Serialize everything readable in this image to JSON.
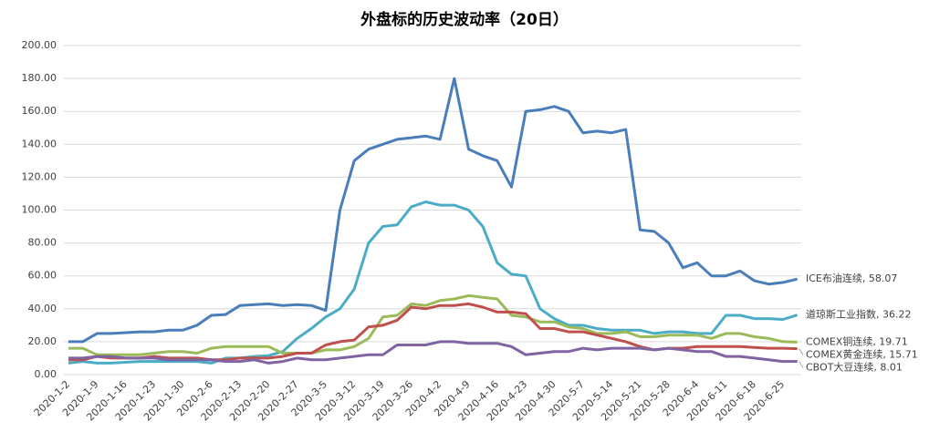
{
  "chart_data": {
    "type": "line",
    "title": "外盘标的历史波动率（20日）",
    "categories": [
      "2020-1-2",
      null,
      "2020-1-9",
      null,
      "2020-1-16",
      null,
      "2020-1-23",
      null,
      "2020-1-30",
      null,
      "2020-2-6",
      null,
      "2020-2-13",
      null,
      "2020-2-20",
      null,
      "2020-2-27",
      null,
      "2020-3-5",
      null,
      "2020-3-12",
      null,
      "2020-3-19",
      null,
      "2020-3-26",
      null,
      "2020-4-2",
      null,
      "2020-4-9",
      null,
      "2020-4-16",
      null,
      "2020-4-23",
      null,
      "2020-4-30",
      null,
      "2020-5-7",
      null,
      "2020-5-14",
      null,
      "2020-5-21",
      null,
      "2020-5-28",
      null,
      "2020-6-4",
      null,
      "2020-6-11",
      null,
      "2020-6-18",
      null,
      "2020-6-25",
      null
    ],
    "ylim": [
      0,
      200
    ],
    "yticks": [
      {
        "value": 0,
        "label": "0.00"
      },
      {
        "value": 20,
        "label": "20.00"
      },
      {
        "value": 40,
        "label": "40.00"
      },
      {
        "value": 60,
        "label": "60.00"
      },
      {
        "value": 80,
        "label": "80.00"
      },
      {
        "value": 100,
        "label": "100.00"
      },
      {
        "value": 120,
        "label": "120.00"
      },
      {
        "value": 140,
        "label": "140.00"
      },
      {
        "value": 160,
        "label": "160.00"
      },
      {
        "value": 180,
        "label": "180.00"
      },
      {
        "value": 200,
        "label": "200.00"
      }
    ],
    "grid": true,
    "series": [
      {
        "label": "ICE布油连续, 58.07",
        "color": "#4a7ebb",
        "values": [
          20,
          20,
          25,
          25,
          25.5,
          26,
          26,
          27,
          27,
          30,
          36,
          36.5,
          42,
          42.5,
          43,
          42,
          42.5,
          42,
          39,
          100,
          130,
          137,
          140,
          143,
          144,
          145,
          143,
          180,
          137,
          133,
          130,
          114,
          160,
          161,
          163,
          160,
          147,
          148,
          147,
          149,
          88,
          87,
          80,
          65,
          68,
          60,
          60,
          63,
          57,
          55,
          56,
          58.07
        ]
      },
      {
        "label": "道琼斯工业指数, 36.22",
        "color": "#4bacc6",
        "values": [
          7,
          8,
          7,
          7,
          7.5,
          8,
          8,
          8,
          8,
          8,
          7,
          10,
          10,
          11,
          11.5,
          14,
          22,
          28,
          35,
          40,
          52,
          80,
          90,
          91,
          102,
          105,
          103,
          103,
          100,
          90,
          68,
          61,
          60,
          40,
          34,
          30,
          30,
          28,
          27,
          27,
          27,
          25,
          26,
          26,
          25,
          25,
          36,
          36,
          34,
          34,
          33.5,
          36.22
        ]
      },
      {
        "label": "COMEX铜连续, 19.71",
        "color": "#9bbb59",
        "values": [
          16,
          16,
          12,
          12,
          12,
          12,
          13,
          14,
          14,
          13,
          16,
          17,
          17,
          17,
          17,
          13,
          13,
          13,
          15,
          15,
          17,
          22,
          35,
          36,
          43,
          42,
          45,
          46,
          48,
          47,
          46,
          36,
          35,
          32,
          32,
          29,
          28,
          25,
          25,
          26,
          23,
          23,
          24,
          24,
          24,
          22,
          25,
          25,
          23,
          22,
          20,
          19.71
        ]
      },
      {
        "label": "COMEX黄金连续, 15.71",
        "color": "#c0504d",
        "values": [
          9,
          9,
          11,
          10,
          10,
          10,
          11,
          10,
          10,
          10,
          9,
          9,
          10,
          10,
          10,
          11,
          13,
          13,
          18,
          20,
          21,
          29,
          30,
          33,
          41,
          40,
          42,
          42,
          43,
          41,
          38,
          38,
          37,
          28,
          28,
          26,
          26,
          24,
          22,
          20,
          17,
          15,
          16,
          16,
          17,
          17,
          17,
          17,
          16.5,
          16,
          16,
          15.71
        ]
      },
      {
        "label": "CBOT大豆连续, 8.01",
        "color": "#8064a2",
        "values": [
          10,
          10,
          11,
          11,
          10,
          10,
          10,
          9,
          9,
          9,
          9,
          8,
          8,
          9,
          7,
          8,
          10,
          9,
          9,
          10,
          11,
          12,
          12,
          18,
          18,
          18,
          20,
          20,
          19,
          19,
          19,
          17,
          12,
          13,
          14,
          14,
          16,
          15,
          16,
          16,
          16,
          15,
          16,
          15,
          14,
          14,
          11,
          11,
          10,
          9,
          8,
          8.01
        ]
      }
    ]
  }
}
